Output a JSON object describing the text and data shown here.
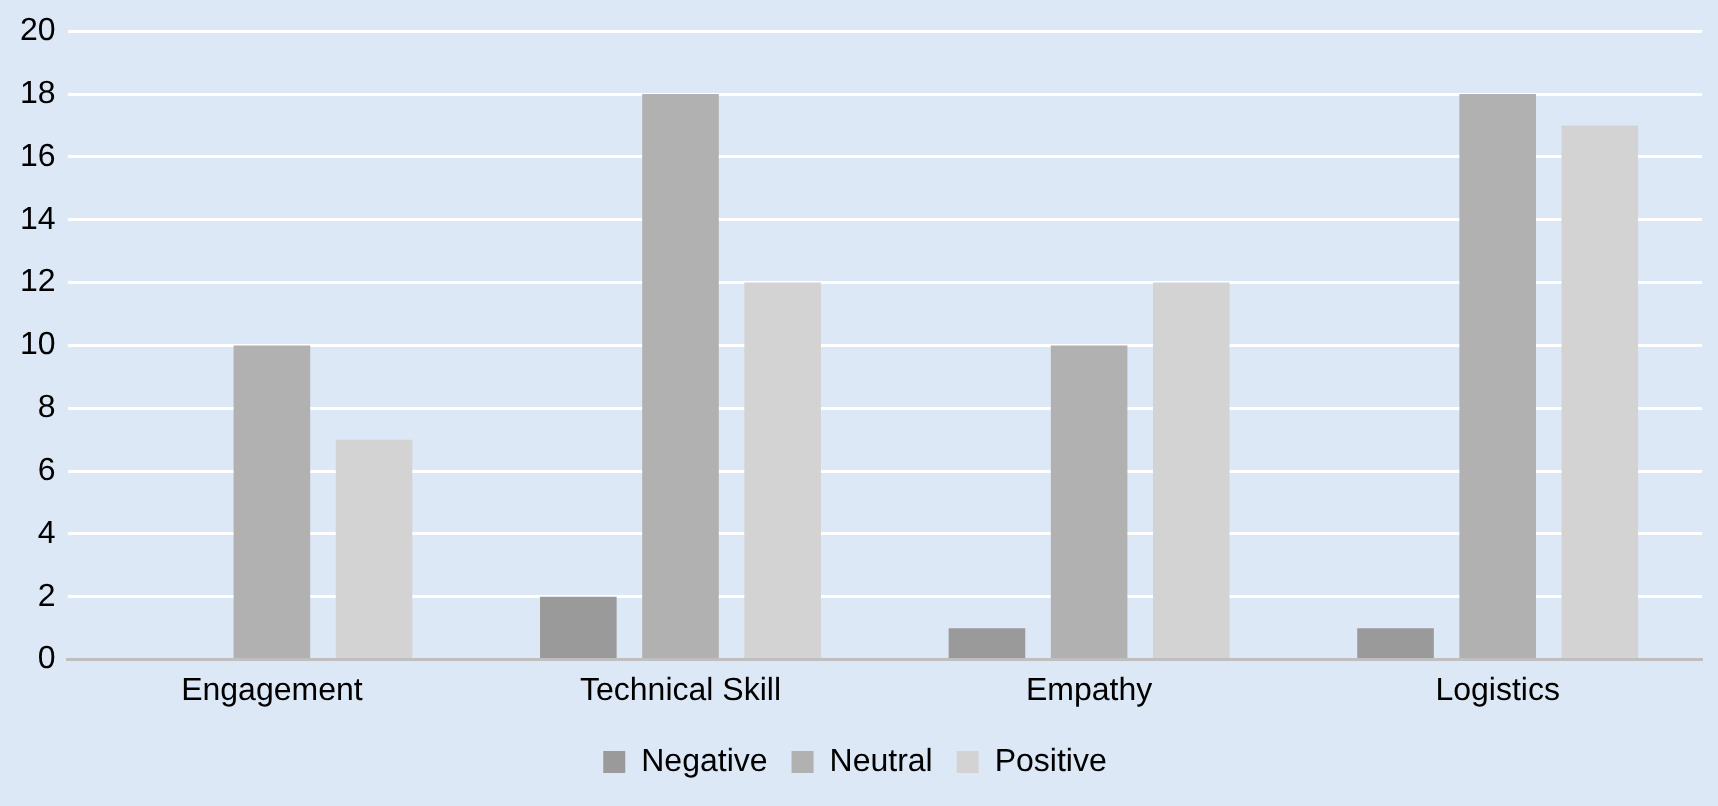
{
  "chart_data": {
    "type": "bar",
    "categories": [
      "Engagement",
      "Technical Skill",
      "Empathy",
      "Logistics"
    ],
    "series": [
      {
        "name": "Negative",
        "color": "#9a9a9a",
        "values": [
          0,
          2,
          1,
          1
        ]
      },
      {
        "name": "Neutral",
        "color": "#b1b1b1",
        "values": [
          10,
          18,
          10,
          18
        ]
      },
      {
        "name": "Positive",
        "color": "#d3d3d3",
        "values": [
          7,
          12,
          12,
          17
        ]
      }
    ],
    "ylim": [
      0,
      20
    ],
    "yticks": [
      0,
      2,
      4,
      6,
      8,
      10,
      12,
      14,
      16,
      18,
      20
    ],
    "grid": "y",
    "legend": "bottom"
  }
}
